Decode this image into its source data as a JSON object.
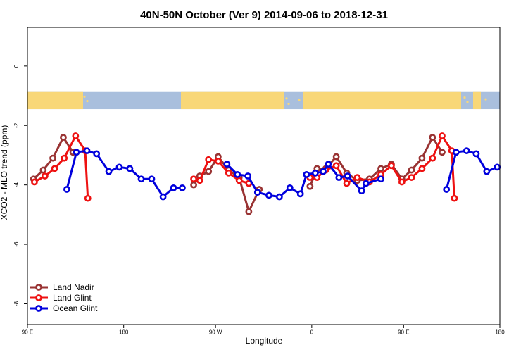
{
  "chart_data": {
    "type": "line",
    "title": "40N-50N October (Ver 9)   2014-09-06 to 2018-12-31",
    "xlabel": "Longitude",
    "ylabel": "XCO2 - MLO trend (ppm)",
    "xlim": [
      -180,
      360
    ],
    "ylim": [
      -8.7,
      1.3
    ],
    "x_ticks": [
      {
        "value": -180,
        "label": "90 E"
      },
      {
        "value": -70,
        "label": "180"
      },
      {
        "value": 35,
        "label": "90 W"
      },
      {
        "value": 145,
        "label": "0"
      },
      {
        "value": 250,
        "label": "90 E"
      },
      {
        "value": 360,
        "label": "180"
      }
    ],
    "y_ticks": [
      {
        "value": 0,
        "label": "0"
      },
      {
        "value": -2,
        "label": "-2"
      },
      {
        "value": -4,
        "label": "-4"
      },
      {
        "value": -6,
        "label": "-6"
      },
      {
        "value": -8,
        "label": "-8"
      }
    ],
    "map_band": {
      "ymin": -1.45,
      "ymax": -0.85,
      "land_color": "#f8d778",
      "ocean_color": "#a9bfdd"
    },
    "legend_position": "bottom-left",
    "series": [
      {
        "name": "Land Nadir",
        "color": "#993333",
        "points": [
          [
            [
              -173,
              -3.8
            ],
            [
              -162,
              -3.5
            ],
            [
              -151,
              -3.1
            ],
            [
              -139,
              -2.4
            ],
            [
              -128,
              -2.9
            ]
          ],
          [
            [
              10,
              -4.0
            ],
            [
              17,
              -3.7
            ],
            [
              27,
              -3.55
            ],
            [
              38,
              -3.05
            ],
            [
              50,
              -3.5
            ],
            [
              62,
              -3.75
            ],
            [
              73,
              -4.9
            ],
            [
              85,
              -4.15
            ]
          ],
          [
            [
              143,
              -4.05
            ],
            [
              151,
              -3.45
            ],
            [
              161,
              -3.45
            ],
            [
              173,
              -3.05
            ],
            [
              185,
              -3.6
            ],
            [
              197,
              -3.85
            ],
            [
              211,
              -3.8
            ],
            [
              224,
              -3.45
            ],
            [
              236,
              -3.3
            ],
            [
              248,
              -3.8
            ],
            [
              259,
              -3.5
            ],
            [
              271,
              -3.1
            ],
            [
              283,
              -2.4
            ],
            [
              294,
              -2.9
            ]
          ]
        ]
      },
      {
        "name": "Land Glint",
        "color": "#ee1111",
        "points": [
          [
            [
              -172,
              -3.9
            ],
            [
              -160,
              -3.7
            ],
            [
              -149,
              -3.45
            ],
            [
              -138,
              -3.1
            ],
            [
              -125,
              -2.35
            ],
            [
              -114,
              -2.85
            ],
            [
              -111,
              -4.45
            ]
          ],
          [
            [
              10,
              -3.8
            ],
            [
              17,
              -3.85
            ],
            [
              27,
              -3.15
            ],
            [
              38,
              -3.2
            ],
            [
              50,
              -3.6
            ],
            [
              62,
              -3.85
            ],
            [
              73,
              -3.95
            ]
          ],
          [
            [
              143,
              -3.75
            ],
            [
              151,
              -3.75
            ],
            [
              161,
              -3.5
            ],
            [
              173,
              -3.35
            ],
            [
              185,
              -3.95
            ],
            [
              197,
              -3.75
            ],
            [
              211,
              -3.9
            ],
            [
              224,
              -3.65
            ],
            [
              236,
              -3.35
            ],
            [
              248,
              -3.9
            ],
            [
              259,
              -3.75
            ],
            [
              271,
              -3.45
            ],
            [
              283,
              -3.1
            ],
            [
              294,
              -2.35
            ],
            [
              305,
              -2.85
            ],
            [
              308,
              -4.45
            ]
          ]
        ]
      },
      {
        "name": "Ocean Glint",
        "color": "#0000dd",
        "points": [
          [
            [
              -135,
              -4.15
            ],
            [
              -124,
              -2.9
            ],
            [
              -112,
              -2.85
            ],
            [
              -101,
              -2.95
            ],
            [
              -87,
              -3.55
            ],
            [
              -75,
              -3.4
            ],
            [
              -63,
              -3.45
            ],
            [
              -50,
              -3.8
            ],
            [
              -38,
              -3.8
            ],
            [
              -25,
              -4.4
            ],
            [
              -13,
              -4.1
            ],
            [
              -3,
              -4.1
            ]
          ],
          [
            [
              48,
              -3.3
            ],
            [
              60,
              -3.65
            ],
            [
              72,
              -3.7
            ],
            [
              83,
              -4.25
            ],
            [
              96,
              -4.35
            ],
            [
              108,
              -4.4
            ],
            [
              120,
              -4.1
            ],
            [
              132,
              -4.3
            ],
            [
              139,
              -3.65
            ],
            [
              149,
              -3.6
            ],
            [
              158,
              -3.55
            ],
            [
              164,
              -3.3
            ],
            [
              176,
              -3.75
            ],
            [
              186,
              -3.7
            ],
            [
              202,
              -4.2
            ],
            [
              207,
              -3.95
            ],
            [
              224,
              -3.8
            ]
          ],
          [
            [
              299,
              -4.15
            ],
            [
              310,
              -2.9
            ],
            [
              322,
              -2.85
            ],
            [
              333,
              -2.95
            ],
            [
              345,
              -3.55
            ],
            [
              357,
              -3.4
            ]
          ]
        ]
      }
    ]
  }
}
